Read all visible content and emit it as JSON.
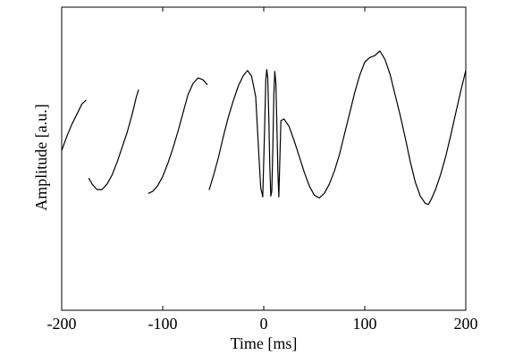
{
  "chart_data": {
    "type": "line",
    "title": "",
    "xlabel": "Time [ms]",
    "ylabel": "Amplitude [a.u.]",
    "xlim": [
      -200,
      200
    ],
    "ylim": [
      -1,
      1
    ],
    "xticks": [
      -200,
      -100,
      0,
      100,
      200
    ],
    "xtick_labels": [
      "-200",
      "-100",
      "0",
      "100",
      "200"
    ],
    "yticks": [],
    "grid": false,
    "legend": "none",
    "line_color": "#000000",
    "series": [
      {
        "segments": [
          {
            "x": [
              -200,
              -195,
              -190,
              -185,
              -180,
              -176
            ],
            "y": [
              -0.08,
              0.07,
              0.2,
              0.31,
              0.42,
              0.46
            ]
          },
          {
            "x": [
              -173,
              -170,
              -165,
              -160,
              -155,
              -150,
              -145,
              -140,
              -135,
              -130,
              -126,
              -124
            ],
            "y": [
              -0.38,
              -0.44,
              -0.5,
              -0.5,
              -0.44,
              -0.34,
              -0.2,
              -0.04,
              0.12,
              0.32,
              0.5,
              0.57
            ]
          },
          {
            "x": [
              -114,
              -110,
              -105,
              -100,
              -95,
              -90,
              -85,
              -80,
              -75,
              -70,
              -65,
              -60,
              -56
            ],
            "y": [
              -0.54,
              -0.52,
              -0.46,
              -0.36,
              -0.22,
              -0.06,
              0.12,
              0.32,
              0.52,
              0.64,
              0.7,
              0.68,
              0.63
            ]
          },
          {
            "x": [
              -54,
              -50,
              -45,
              -40,
              -35,
              -30,
              -25,
              -20,
              -16,
              -12,
              -8,
              -5,
              -3,
              -1,
              1,
              2,
              3,
              4,
              5,
              6,
              7,
              8,
              9,
              10,
              11,
              12,
              13,
              14,
              15,
              17,
              20,
              25,
              30,
              35,
              40,
              45,
              50,
              55,
              60,
              65,
              70,
              75,
              80,
              85,
              90,
              95,
              100,
              105,
              110,
              115,
              120,
              125,
              130,
              135,
              140,
              145,
              150,
              155,
              160,
              163,
              166,
              170,
              175,
              180,
              185,
              190,
              195,
              200
            ],
            "y": [
              -0.5,
              -0.36,
              -0.16,
              0.07,
              0.28,
              0.46,
              0.62,
              0.73,
              0.78,
              0.72,
              0.5,
              -0.1,
              -0.48,
              -0.58,
              0.2,
              0.68,
              0.79,
              0.7,
              0.3,
              -0.25,
              -0.57,
              -0.52,
              -0.05,
              0.52,
              0.77,
              0.64,
              0.2,
              -0.3,
              -0.58,
              0.24,
              0.26,
              0.18,
              0.03,
              -0.14,
              -0.31,
              -0.46,
              -0.56,
              -0.59,
              -0.54,
              -0.44,
              -0.3,
              -0.12,
              0.1,
              0.32,
              0.54,
              0.73,
              0.87,
              0.92,
              0.94,
              0.99,
              0.9,
              0.74,
              0.52,
              0.3,
              0.06,
              -0.2,
              -0.42,
              -0.57,
              -0.65,
              -0.66,
              -0.6,
              -0.5,
              -0.34,
              -0.15,
              0.08,
              0.32,
              0.56,
              0.78
            ]
          }
        ]
      }
    ]
  }
}
